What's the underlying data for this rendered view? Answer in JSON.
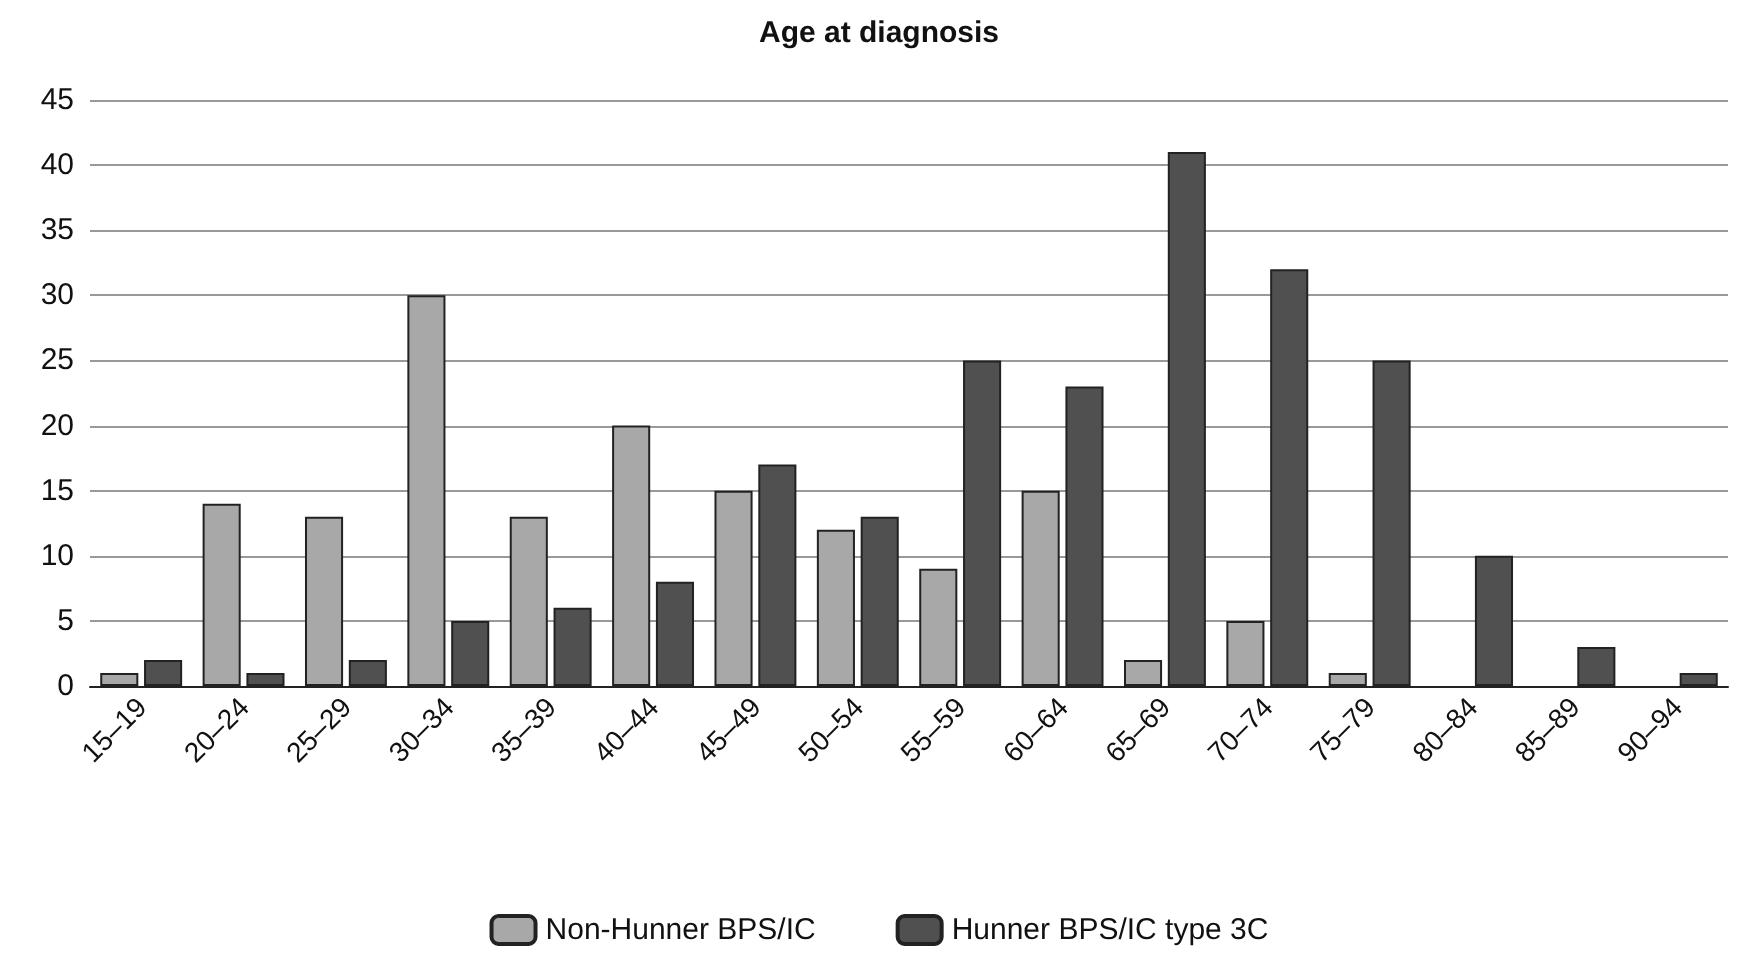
{
  "chart_data": {
    "type": "bar",
    "title": "Age at diagnosis",
    "categories": [
      "15–19",
      "20–24",
      "25–29",
      "30–34",
      "35–39",
      "40–44",
      "45–49",
      "50–54",
      "55–59",
      "60–64",
      "65–69",
      "70–74",
      "75–79",
      "80–84",
      "85–89",
      "90–94"
    ],
    "series": [
      {
        "name": "Non-Hunner BPS/IC",
        "color": "#a8a8a8",
        "values": [
          1,
          14,
          13,
          30,
          13,
          20,
          15,
          12,
          9,
          15,
          2,
          5,
          1,
          null,
          null,
          null
        ]
      },
      {
        "name": "Hunner BPS/IC type 3C",
        "color": "#505050",
        "values": [
          2,
          1,
          2,
          5,
          6,
          8,
          17,
          13,
          25,
          23,
          41,
          32,
          25,
          10,
          3,
          1
        ]
      }
    ],
    "ylim": [
      0,
      45
    ],
    "yticks": [
      0,
      5,
      10,
      15,
      20,
      25,
      30,
      35,
      40,
      45
    ],
    "grid": "y",
    "legend": "bottom"
  }
}
